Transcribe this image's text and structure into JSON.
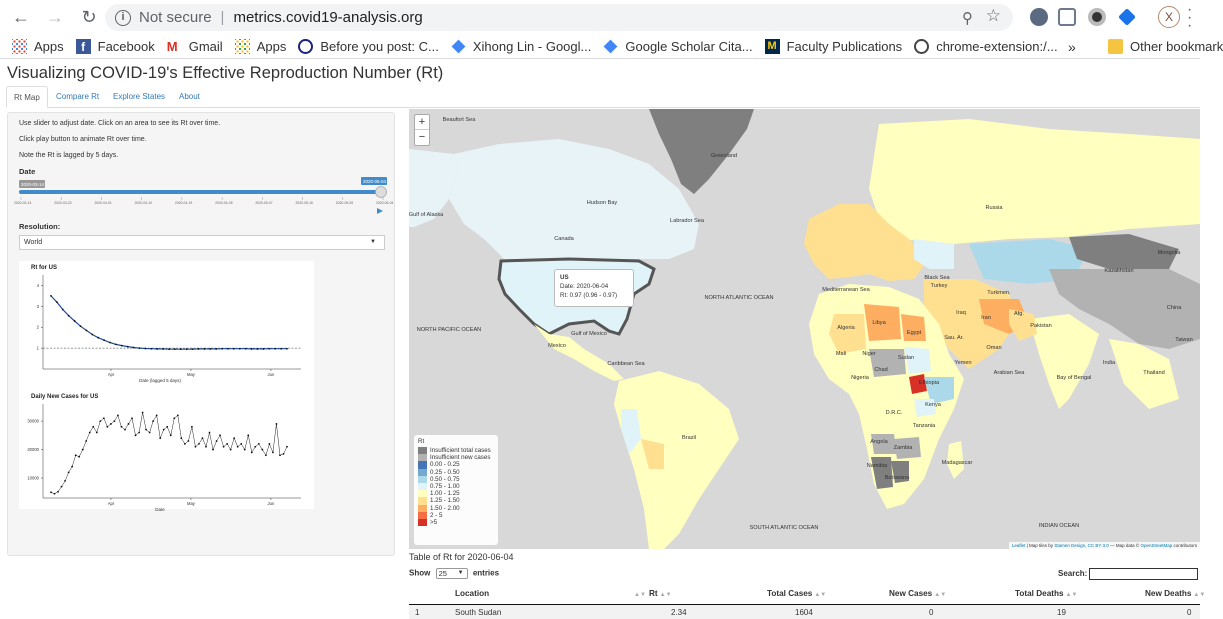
{
  "browser": {
    "url_secure": "Not secure",
    "url": "metrics.covid19-analysis.org",
    "avatar_letter": "X",
    "bookmarks": [
      {
        "label": "Apps",
        "icon": "apps-grid-icon"
      },
      {
        "label": "Facebook",
        "icon": "facebook-icon"
      },
      {
        "label": "Gmail",
        "icon": "gmail-icon"
      },
      {
        "label": "Apps",
        "icon": "apps-grid-icon"
      },
      {
        "label": "Before you post: C...",
        "icon": "globe-icon"
      },
      {
        "label": "Xihong Lin - Googl...",
        "icon": "scholar-icon"
      },
      {
        "label": "Google Scholar Cita...",
        "icon": "scholar-icon"
      },
      {
        "label": "Faculty Publications",
        "icon": "michigan-m-icon"
      },
      {
        "label": "chrome-extension:/...",
        "icon": "globe-icon"
      }
    ],
    "more": "»",
    "other_bookmarks": "Other bookmark"
  },
  "app": {
    "title": "Visualizing COVID-19's Effective Reproduction Number (Rt)",
    "tabs": [
      "Rt Map",
      "Compare Rt",
      "Explore States",
      "About"
    ],
    "active_tab": "Rt Map"
  },
  "sidebar": {
    "help": [
      "Use slider to adjust date. Click on an area to see its Rt over time.",
      "Click play button to animate Rt over time.",
      "Note the Rt is lagged by 5 days."
    ],
    "date_label": "Date",
    "slider_min": "2020-03-14",
    "slider_value": "2020-06-04",
    "slider_ticks": [
      "2020-03-14",
      "2020-03-23",
      "2020-04-01",
      "2020-04-10",
      "2020-04-19",
      "2020-04-28",
      "2020-05-07",
      "2020-05-16",
      "2020-05-25",
      "2020-06-04"
    ],
    "slider_fraction": 1.0,
    "resolution_label": "Resolution:",
    "resolution_value": "World"
  },
  "chart_data": [
    {
      "type": "line",
      "title": "Rt for US",
      "xlabel": "Date (lagged 5 days)",
      "ylabel": "",
      "x_ticks": [
        "Apr",
        "May",
        "Jun"
      ],
      "y_ticks": [
        1,
        2,
        3,
        4
      ],
      "ylim": [
        0,
        4.5
      ],
      "reference_line": 1,
      "x": [
        0,
        2,
        4,
        6,
        8,
        10,
        12,
        14,
        16,
        18,
        20,
        22,
        24,
        26,
        28,
        30,
        32,
        34,
        36,
        38,
        40,
        42,
        44,
        46,
        48,
        50,
        52,
        54,
        56,
        58,
        60,
        62,
        64,
        66,
        68,
        70,
        72,
        74,
        76,
        78,
        80
      ],
      "values": [
        3.5,
        3.2,
        2.85,
        2.55,
        2.3,
        2.05,
        1.85,
        1.65,
        1.5,
        1.38,
        1.27,
        1.18,
        1.12,
        1.07,
        1.03,
        1.0,
        0.98,
        0.97,
        0.96,
        0.96,
        0.95,
        0.95,
        0.95,
        0.95,
        0.95,
        0.96,
        0.96,
        0.96,
        0.96,
        0.97,
        0.97,
        0.97,
        0.97,
        0.97,
        0.96,
        0.96,
        0.96,
        0.97,
        0.97,
        0.97,
        0.97
      ]
    },
    {
      "type": "line",
      "title": "Daily New Cases for US",
      "xlabel": "Date",
      "ylabel": "",
      "x_ticks": [
        "Apr",
        "May",
        "Jun"
      ],
      "y_ticks": [
        10000,
        20000,
        30000
      ],
      "ylim": [
        3000,
        36000
      ],
      "values": [
        5000,
        4500,
        5200,
        7000,
        9000,
        12000,
        14000,
        18000,
        17500,
        20000,
        23000,
        26000,
        28000,
        26000,
        30000,
        31000,
        28000,
        29000,
        30000,
        32000,
        28000,
        27000,
        29000,
        31000,
        25000,
        26000,
        33000,
        27000,
        26000,
        30000,
        32000,
        24000,
        27000,
        28000,
        25000,
        31000,
        32000,
        24000,
        22000,
        23000,
        28000,
        21000,
        22000,
        24000,
        21000,
        26000,
        20000,
        23000,
        25000,
        21000,
        22000,
        20000,
        24000,
        21000,
        22000,
        20000,
        25000,
        19000,
        21000,
        22000,
        20000,
        18000,
        22000,
        19000,
        29000,
        18000,
        18500,
        21000
      ]
    }
  ],
  "map": {
    "tooltip": {
      "name": "US",
      "date": "Date: 2020-06-04",
      "rt": "Rt: 0.97 (0.96 - 0.97)"
    },
    "legend_title": "Rt",
    "legend": [
      {
        "label": "Insufficient total cases",
        "color": "#7f7f7f"
      },
      {
        "label": "Insufficient new cases",
        "color": "#b2b2b2"
      },
      {
        "label": "0.00 - 0.25",
        "color": "#4575b4"
      },
      {
        "label": "0.25 - 0.50",
        "color": "#74a9cf"
      },
      {
        "label": "0.50 - 0.75",
        "color": "#abd9e9"
      },
      {
        "label": "0.75 - 1.00",
        "color": "#e0f3f8"
      },
      {
        "label": "1.00 - 1.25",
        "color": "#ffffbf"
      },
      {
        "label": "1.25 - 1.50",
        "color": "#fee090"
      },
      {
        "label": "1.50 - 2.00",
        "color": "#fdae61"
      },
      {
        "label": "2 - 5",
        "color": "#f46d43"
      },
      {
        "label": ">5",
        "color": "#d73027"
      }
    ],
    "labels": [
      {
        "text": "Beaufort Sea",
        "x": 50,
        "y": 12
      },
      {
        "text": "Gulf of Alaska",
        "x": 17,
        "y": 107
      },
      {
        "text": "Hudson Bay",
        "x": 193,
        "y": 95
      },
      {
        "text": "Labrador Sea",
        "x": 278,
        "y": 113
      },
      {
        "text": "Canada",
        "x": 155,
        "y": 131
      },
      {
        "text": "Greenland",
        "x": 315,
        "y": 48
      },
      {
        "text": "NORTH ATLANTIC OCEAN",
        "x": 330,
        "y": 190
      },
      {
        "text": "NORTH PACIFIC OCEAN",
        "x": 40,
        "y": 222
      },
      {
        "text": "Mexico",
        "x": 148,
        "y": 238
      },
      {
        "text": "Gulf of Mexico",
        "x": 180,
        "y": 226
      },
      {
        "text": "Caribbean Sea",
        "x": 217,
        "y": 256
      },
      {
        "text": "Brazil",
        "x": 280,
        "y": 330
      },
      {
        "text": "SOUTH ATLANTIC OCEAN",
        "x": 375,
        "y": 420
      },
      {
        "text": "Russia",
        "x": 585,
        "y": 100
      },
      {
        "text": "Kazakhstan",
        "x": 710,
        "y": 163
      },
      {
        "text": "Mongolia",
        "x": 760,
        "y": 145
      },
      {
        "text": "China",
        "x": 765,
        "y": 200
      },
      {
        "text": "India",
        "x": 700,
        "y": 255
      },
      {
        "text": "Arabian Sea",
        "x": 600,
        "y": 265
      },
      {
        "text": "Bay of Bengal",
        "x": 665,
        "y": 270
      },
      {
        "text": "Libya",
        "x": 470,
        "y": 215
      },
      {
        "text": "Egypt",
        "x": 505,
        "y": 225
      },
      {
        "text": "Algeria",
        "x": 437,
        "y": 220
      },
      {
        "text": "Niger",
        "x": 460,
        "y": 246
      },
      {
        "text": "Mali",
        "x": 432,
        "y": 246
      },
      {
        "text": "Sudan",
        "x": 497,
        "y": 250
      },
      {
        "text": "Chad",
        "x": 472,
        "y": 262
      },
      {
        "text": "Nigeria",
        "x": 451,
        "y": 270
      },
      {
        "text": "Ethiopia",
        "x": 520,
        "y": 275
      },
      {
        "text": "D.R.C.",
        "x": 485,
        "y": 305
      },
      {
        "text": "Kenya",
        "x": 524,
        "y": 297
      },
      {
        "text": "Tanzania",
        "x": 515,
        "y": 318
      },
      {
        "text": "Angola",
        "x": 470,
        "y": 334
      },
      {
        "text": "Zambia",
        "x": 494,
        "y": 340
      },
      {
        "text": "Namibia",
        "x": 468,
        "y": 358
      },
      {
        "text": "Botswana",
        "x": 488,
        "y": 370
      },
      {
        "text": "Madagascar",
        "x": 548,
        "y": 355
      },
      {
        "text": "INDIAN OCEAN",
        "x": 650,
        "y": 418
      },
      {
        "text": "Turkey",
        "x": 530,
        "y": 178
      },
      {
        "text": "Iran",
        "x": 577,
        "y": 210
      },
      {
        "text": "Iraq",
        "x": 552,
        "y": 205
      },
      {
        "text": "Afg.",
        "x": 610,
        "y": 206
      },
      {
        "text": "Pakistan",
        "x": 632,
        "y": 218
      },
      {
        "text": "Yemen",
        "x": 554,
        "y": 255
      },
      {
        "text": "Oman",
        "x": 585,
        "y": 240
      },
      {
        "text": "Sau. Ar.",
        "x": 545,
        "y": 230
      },
      {
        "text": "Black Sea",
        "x": 528,
        "y": 170
      },
      {
        "text": "Mediterranean Sea",
        "x": 437,
        "y": 182
      },
      {
        "text": "Turkmen.",
        "x": 590,
        "y": 185
      },
      {
        "text": "Thailand",
        "x": 745,
        "y": 265
      },
      {
        "text": "Taiwan",
        "x": 775,
        "y": 232
      }
    ],
    "attribution": {
      "leaflet": "Leaflet",
      "tiles": "| Map tiles by",
      "stamen": "Stamen Design",
      "cc": "CC BY 3.0",
      "data": "— Map data ©",
      "osm": "OpenStreetMap",
      "contrib": "contributors"
    }
  },
  "table": {
    "caption": "Table of Rt for 2020-06-04",
    "show_label": "Show",
    "entries_value": "25",
    "entries_label": "entries",
    "search_label": "Search:",
    "columns": [
      "Location",
      "Rt",
      "Total Cases",
      "New Cases",
      "Total Deaths",
      "New Deaths"
    ],
    "rows": [
      {
        "index": "1",
        "location": "South Sudan",
        "rt": "2.34",
        "total_cases": "1604",
        "new_cases": "0",
        "total_deaths": "19",
        "new_deaths": "0"
      }
    ]
  },
  "colors": {
    "link": "#337ab7",
    "slider": "#428bca",
    "map_gray": "#d8d8d8"
  }
}
